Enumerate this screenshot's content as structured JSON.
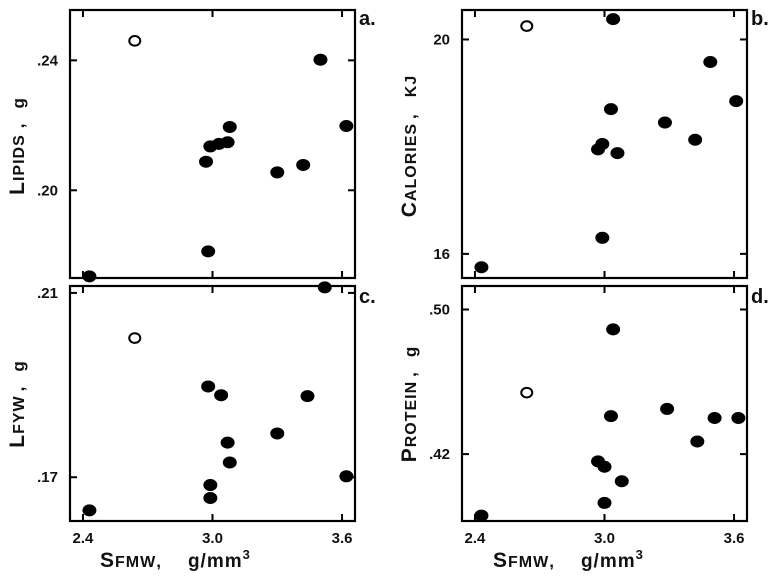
{
  "chart_data": [
    {
      "type": "scatter",
      "panel": "a.",
      "xlabel": "SFMW, g/mm3",
      "ylabel": "LIPIDS, g",
      "xlim": [
        2.34,
        3.66
      ],
      "ylim": [
        0.173,
        0.2555
      ],
      "xticks": [
        "2.4",
        "3.0",
        "3.6"
      ],
      "yticks": [
        ".20",
        ".24"
      ],
      "ytick_values": [
        0.2,
        0.24
      ],
      "points_filled": [
        {
          "x": 2.43,
          "y": 0.1735
        },
        {
          "x": 2.97,
          "y": 0.2088
        },
        {
          "x": 2.99,
          "y": 0.2135
        },
        {
          "x": 3.03,
          "y": 0.2143
        },
        {
          "x": 3.07,
          "y": 0.2148
        },
        {
          "x": 3.08,
          "y": 0.2195
        },
        {
          "x": 2.98,
          "y": 0.1812
        },
        {
          "x": 3.3,
          "y": 0.2055
        },
        {
          "x": 3.42,
          "y": 0.2078
        },
        {
          "x": 3.5,
          "y": 0.2402
        },
        {
          "x": 3.62,
          "y": 0.2198
        }
      ],
      "points_open": [
        {
          "x": 2.64,
          "y": 0.246
        }
      ]
    },
    {
      "type": "scatter",
      "panel": "b.",
      "xlabel": "SFMW, g/mm3",
      "ylabel": "CALORIES, kJ",
      "xlim": [
        2.34,
        3.66
      ],
      "ylim": [
        15.55,
        20.55
      ],
      "xticks": [
        "2.4",
        "3.0",
        "3.6"
      ],
      "yticks": [
        "20",
        "16"
      ],
      "ytick_values": [
        20,
        16
      ],
      "points_filled": [
        {
          "x": 2.43,
          "y": 15.75
        },
        {
          "x": 3.04,
          "y": 20.38
        },
        {
          "x": 3.03,
          "y": 18.7
        },
        {
          "x": 2.97,
          "y": 17.95
        },
        {
          "x": 2.99,
          "y": 18.05
        },
        {
          "x": 3.06,
          "y": 17.88
        },
        {
          "x": 2.99,
          "y": 16.3
        },
        {
          "x": 3.28,
          "y": 18.45
        },
        {
          "x": 3.42,
          "y": 18.13
        },
        {
          "x": 3.49,
          "y": 19.58
        },
        {
          "x": 3.61,
          "y": 18.85
        }
      ],
      "points_open": [
        {
          "x": 2.64,
          "y": 20.25
        }
      ]
    },
    {
      "type": "scatter",
      "panel": "c.",
      "xlabel": "SFMW, g/mm3",
      "ylabel": "LFYW, g",
      "xlim": [
        2.34,
        3.66
      ],
      "ylim": [
        0.1605,
        0.2115
      ],
      "xticks": [
        "2.4",
        "3.0",
        "3.6"
      ],
      "yticks": [
        ".21",
        ".17"
      ],
      "ytick_values": [
        0.21,
        0.17
      ],
      "points_filled": [
        {
          "x": 2.43,
          "y": 0.1628
        },
        {
          "x": 2.98,
          "y": 0.1897
        },
        {
          "x": 3.04,
          "y": 0.1878
        },
        {
          "x": 3.07,
          "y": 0.1775
        },
        {
          "x": 3.08,
          "y": 0.1732
        },
        {
          "x": 2.99,
          "y": 0.1683
        },
        {
          "x": 2.99,
          "y": 0.1655
        },
        {
          "x": 3.3,
          "y": 0.1795
        },
        {
          "x": 3.44,
          "y": 0.1876
        },
        {
          "x": 3.52,
          "y": 0.2112
        },
        {
          "x": 3.62,
          "y": 0.1702
        }
      ],
      "points_open": [
        {
          "x": 2.64,
          "y": 0.2002
        }
      ]
    },
    {
      "type": "scatter",
      "panel": "d.",
      "xlabel": "SFMW, g/mm3",
      "ylabel": "PROTEIN, g",
      "xlim": [
        2.34,
        3.66
      ],
      "ylim": [
        0.383,
        0.513
      ],
      "xticks": [
        "2.4",
        "3.0",
        "3.6"
      ],
      "yticks": [
        ".50",
        ".42"
      ],
      "ytick_values": [
        0.5,
        0.42
      ],
      "points_filled": [
        {
          "x": 2.43,
          "y": 0.386
        },
        {
          "x": 3.04,
          "y": 0.489
        },
        {
          "x": 3.03,
          "y": 0.441
        },
        {
          "x": 2.97,
          "y": 0.416
        },
        {
          "x": 3.0,
          "y": 0.413
        },
        {
          "x": 3.08,
          "y": 0.405
        },
        {
          "x": 3.0,
          "y": 0.393
        },
        {
          "x": 3.29,
          "y": 0.445
        },
        {
          "x": 3.43,
          "y": 0.427
        },
        {
          "x": 3.51,
          "y": 0.44
        },
        {
          "x": 3.62,
          "y": 0.44
        }
      ],
      "points_open": [
        {
          "x": 2.64,
          "y": 0.454
        }
      ]
    }
  ],
  "labels": {
    "x_axis_left": "SFMW,",
    "x_axis_left_units": "g/mm",
    "x_axis_left_sup": "3",
    "x_axis_right": "SFMW,",
    "x_axis_right_units": "g/mm",
    "x_axis_right_sup": "3"
  }
}
